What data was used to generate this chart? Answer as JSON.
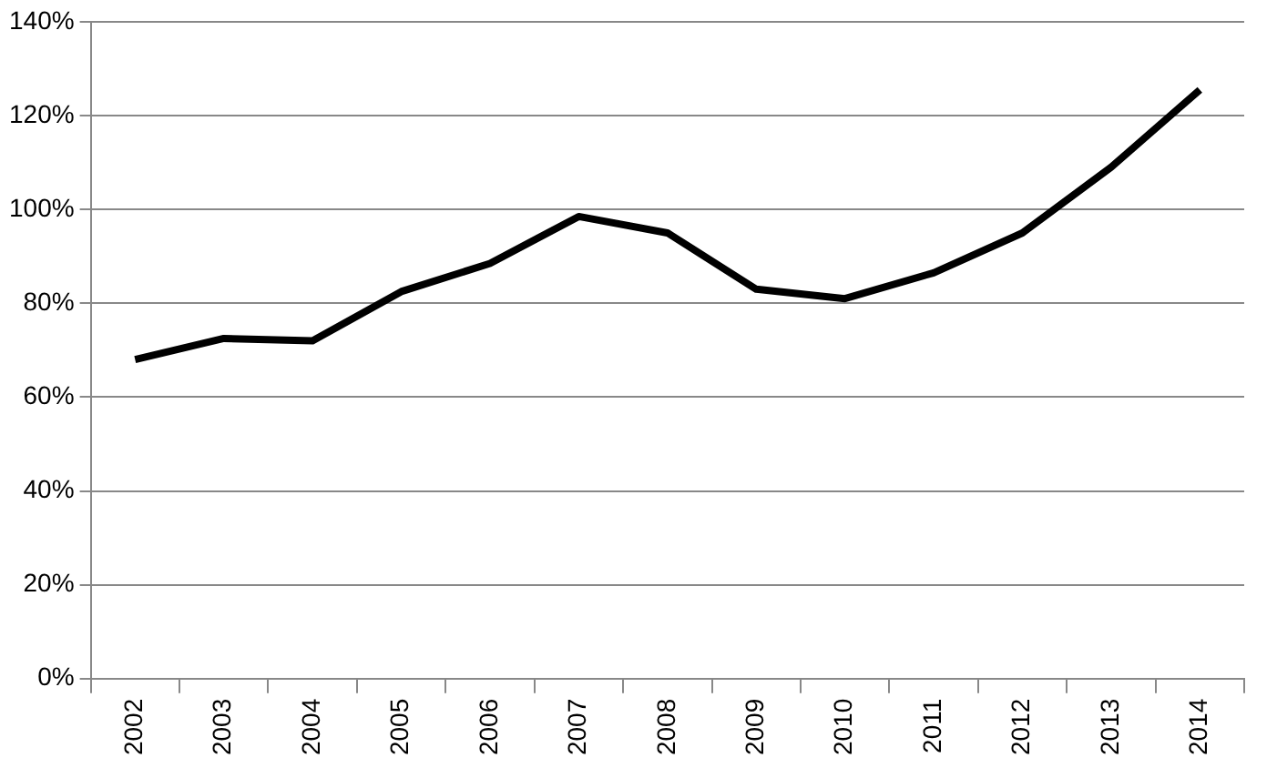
{
  "chart_data": {
    "type": "line",
    "categories": [
      "2002",
      "2003",
      "2004",
      "2005",
      "2006",
      "2007",
      "2008",
      "2009",
      "2010",
      "2011",
      "2012",
      "2013",
      "2014"
    ],
    "series": [
      {
        "color": "#000000",
        "values": [
          68,
          72.5,
          72,
          82.5,
          88.5,
          98.5,
          95,
          83,
          81,
          86.5,
          95,
          109,
          125.5
        ]
      }
    ],
    "ylim": [
      0,
      140
    ],
    "yticks": [
      {
        "value": 0,
        "label": "0%"
      },
      {
        "value": 20,
        "label": "20%"
      },
      {
        "value": 40,
        "label": "40%"
      },
      {
        "value": 60,
        "label": "60%"
      },
      {
        "value": 80,
        "label": "80%"
      },
      {
        "value": 100,
        "label": "100%"
      },
      {
        "value": 120,
        "label": "120%"
      },
      {
        "value": 140,
        "label": "140%"
      }
    ],
    "grid": "y",
    "legend": false,
    "marker": "none",
    "line_style": "solid"
  }
}
